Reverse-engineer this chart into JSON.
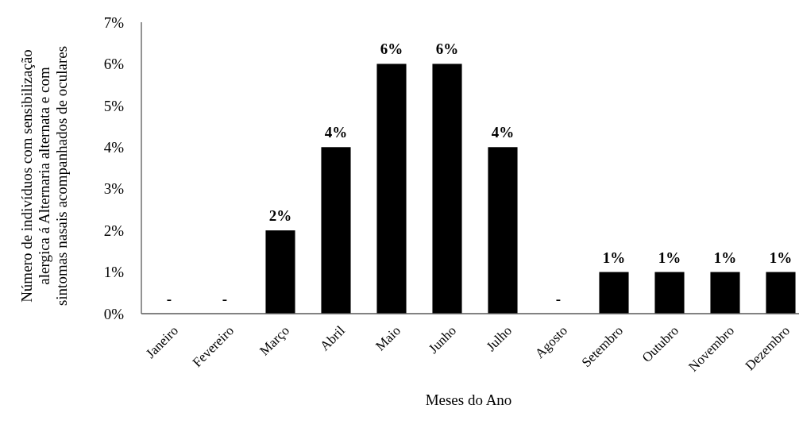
{
  "chart_data": {
    "type": "bar",
    "xlabel": "Meses do Ano",
    "ylabel": "Número de indivíduos com sensibilização alergica á Alternaria alternata e com sintomas nasais acompanhados de oculares",
    "categories": [
      "Janeiro",
      "Fevereiro",
      "Março",
      "Abril",
      "Maio",
      "Junho",
      "Julho",
      "Agosto",
      "Setembro",
      "Outubro",
      "Novembro",
      "Dezembro"
    ],
    "values": [
      0,
      0,
      2,
      4,
      6,
      6,
      4,
      0,
      1,
      1,
      1,
      1
    ],
    "value_labels": [
      "-",
      "-",
      "2%",
      "4%",
      "6%",
      "6%",
      "4%",
      "-",
      "1%",
      "1%",
      "1%",
      "1%"
    ],
    "color": "#000000",
    "ylim": [
      0,
      7
    ],
    "yticks": [
      {
        "value": 0,
        "label": "0%"
      },
      {
        "value": 1,
        "label": "1%"
      },
      {
        "value": 2,
        "label": "2%"
      },
      {
        "value": 3,
        "label": "3%"
      },
      {
        "value": 4,
        "label": "4%"
      },
      {
        "value": 5,
        "label": "5%"
      },
      {
        "value": 6,
        "label": "6%"
      },
      {
        "value": 7,
        "label": "7%"
      }
    ],
    "grid": false
  }
}
